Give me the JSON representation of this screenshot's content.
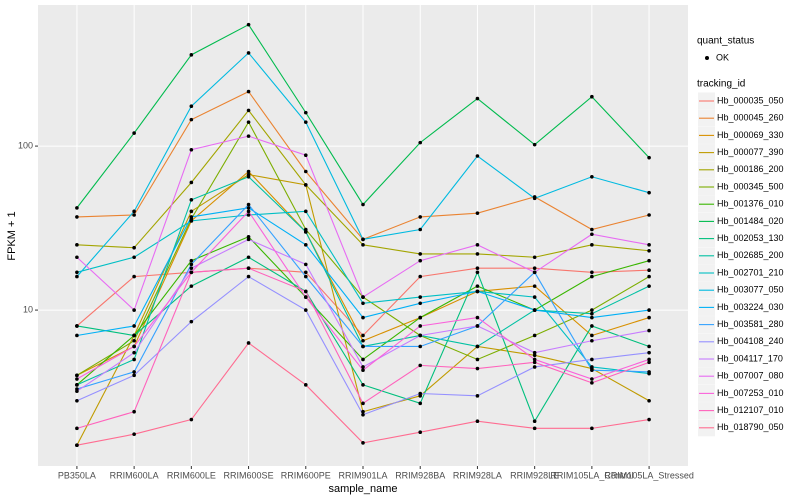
{
  "chart_data": {
    "type": "line",
    "x_label": "sample_name",
    "y_label": "FPKM + 1",
    "log_y": true,
    "grid": true,
    "categories": [
      "PB350LA",
      "RRIM600LA",
      "RRIM600LE",
      "RRIM600SE",
      "RRIM600PE",
      "RRIM901LA",
      "RRIM928BA",
      "RRIM928LA",
      "RRIM928LE",
      "RRIM105LA_Control",
      "RRIM105LA_Stressed"
    ],
    "ylim": [
      1.12,
      725
    ],
    "yticks": [
      10,
      100
    ],
    "shape_legend": {
      "title": "quant_status",
      "labels": [
        "OK"
      ]
    },
    "legend_title": "tracking_id",
    "legend_position": "right",
    "series": [
      {
        "name": "Hb_000035_050",
        "color": "#F8766D",
        "values": [
          8,
          16,
          17,
          18,
          17,
          7,
          16,
          18,
          18,
          17,
          17.5
        ]
      },
      {
        "name": "Hb_000045_260",
        "color": "#EA8331",
        "values": [
          37,
          38,
          145,
          215,
          70,
          27,
          37,
          39,
          49,
          31,
          38
        ]
      },
      {
        "name": "Hb_000069_330",
        "color": "#D89000",
        "values": [
          4,
          6,
          35,
          70,
          30,
          6.5,
          9,
          13,
          14,
          7,
          9
        ]
      },
      {
        "name": "Hb_000077_390",
        "color": "#C09B00",
        "values": [
          1.5,
          7,
          40,
          67,
          58,
          2.4,
          3,
          6,
          5.3,
          4.4,
          2.8
        ]
      },
      {
        "name": "Hb_000186_200",
        "color": "#A3A500",
        "values": [
          25,
          24,
          60,
          165,
          58,
          25,
          22,
          22,
          21,
          25,
          23
        ]
      },
      {
        "name": "Hb_000345_500",
        "color": "#7CAE00",
        "values": [
          4,
          6.5,
          36,
          140,
          31,
          12,
          7,
          5,
          7,
          10,
          16
        ]
      },
      {
        "name": "Hb_001376_010",
        "color": "#39B600",
        "values": [
          3.5,
          7,
          20,
          28,
          12,
          5,
          9,
          14,
          10,
          16,
          20
        ]
      },
      {
        "name": "Hb_001484_020",
        "color": "#00BB4E",
        "values": [
          42,
          120,
          360,
          550,
          160,
          44,
          105,
          195,
          102,
          200,
          85
        ]
      },
      {
        "name": "Hb_002053_130",
        "color": "#00BF7D",
        "values": [
          8,
          7,
          14,
          21,
          13,
          3.5,
          2.7,
          17,
          2.1,
          8,
          6
        ]
      },
      {
        "name": "Hb_002685_200",
        "color": "#00C1A3",
        "values": [
          3.5,
          5,
          47,
          65,
          30,
          6,
          7,
          6,
          10,
          9.5,
          14
        ]
      },
      {
        "name": "Hb_002701_210",
        "color": "#00BFC4",
        "values": [
          17,
          21,
          35,
          38,
          40,
          11,
          12,
          13,
          12,
          4.5,
          4.1
        ]
      },
      {
        "name": "Hb_003077_050",
        "color": "#00BAE0",
        "values": [
          16,
          40,
          175,
          370,
          140,
          27,
          31,
          87,
          48,
          65,
          52
        ]
      },
      {
        "name": "Hb_003224_030",
        "color": "#00B0F6",
        "values": [
          7,
          8,
          37,
          42,
          25,
          9,
          11,
          13,
          10,
          9,
          10
        ]
      },
      {
        "name": "Hb_003581_280",
        "color": "#35A2FF",
        "values": [
          3.3,
          4.2,
          19,
          44,
          16,
          6,
          6,
          8,
          17,
          4.3,
          4.2
        ]
      },
      {
        "name": "Hb_004108_240",
        "color": "#9590FF",
        "values": [
          2.8,
          4,
          8.5,
          16,
          10,
          2.3,
          3.1,
          3,
          4.5,
          5,
          5.5
        ]
      },
      {
        "name": "Hb_004117_170",
        "color": "#C77CFF",
        "values": [
          3.2,
          5.5,
          18,
          27,
          19,
          4.5,
          7,
          8,
          5.5,
          6.5,
          7.5
        ]
      },
      {
        "name": "Hb_007007_080",
        "color": "#E76BF3",
        "values": [
          21,
          10,
          95,
          115,
          88,
          12,
          20,
          25,
          17,
          29,
          25
        ]
      },
      {
        "name": "Hb_007253_010",
        "color": "#FA62DB",
        "values": [
          3.8,
          6,
          17,
          40,
          12,
          4.3,
          8,
          9,
          5,
          3.8,
          5
        ]
      },
      {
        "name": "Hb_012107_010",
        "color": "#FF62BC",
        "values": [
          1.9,
          2.4,
          17,
          18,
          13,
          2.7,
          4.6,
          4.4,
          4.8,
          3.6,
          4.8
        ]
      },
      {
        "name": "Hb_018790_050",
        "color": "#FF6C91",
        "values": [
          1.5,
          1.75,
          2.15,
          6.3,
          3.5,
          1.55,
          1.8,
          2.1,
          1.9,
          1.9,
          2.15
        ]
      }
    ]
  }
}
